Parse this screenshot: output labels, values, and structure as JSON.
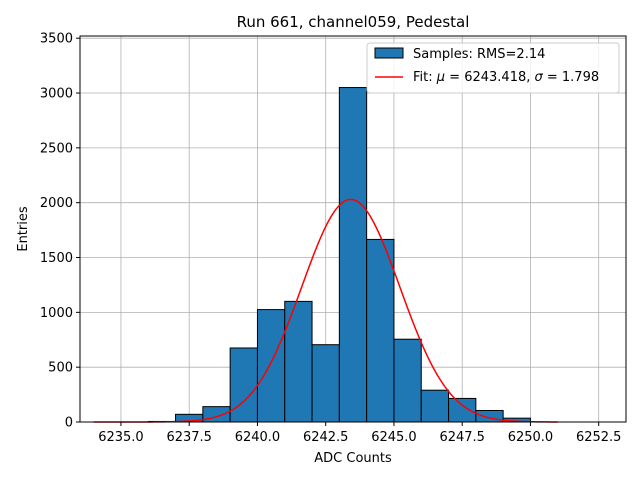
{
  "chart_data": {
    "type": "histogram",
    "title": "Run 661, channel059, Pedestal",
    "xlabel": "ADC Counts",
    "ylabel": "Entries",
    "xlim": [
      6233.5,
      6253.5
    ],
    "ylim": [
      0,
      3520
    ],
    "grid": true,
    "legend_placement": "top-right",
    "bar_color": "#1f77b4",
    "fit_color": "#ff0000",
    "xticks": [
      6235.0,
      6237.5,
      6240.0,
      6242.5,
      6245.0,
      6247.5,
      6250.0,
      6252.5
    ],
    "xtick_labels": [
      "6235.0",
      "6237.5",
      "6240.0",
      "6242.5",
      "6245.0",
      "6247.5",
      "6250.0",
      "6252.5"
    ],
    "yticks": [
      0,
      500,
      1000,
      1500,
      2000,
      2500,
      3000,
      3500
    ],
    "ytick_labels": [
      "0",
      "500",
      "1000",
      "1500",
      "2000",
      "2500",
      "3000",
      "3500"
    ],
    "bins": [
      {
        "x0": 6236,
        "x1": 6237,
        "count": 5
      },
      {
        "x0": 6237,
        "x1": 6238,
        "count": 70
      },
      {
        "x0": 6238,
        "x1": 6239,
        "count": 140
      },
      {
        "x0": 6239,
        "x1": 6240,
        "count": 675
      },
      {
        "x0": 6240,
        "x1": 6241,
        "count": 1025
      },
      {
        "x0": 6241,
        "x1": 6242,
        "count": 1100
      },
      {
        "x0": 6242,
        "x1": 6243,
        "count": 705
      },
      {
        "x0": 6243,
        "x1": 6244,
        "count": 3050
      },
      {
        "x0": 6244,
        "x1": 6245,
        "count": 1665
      },
      {
        "x0": 6245,
        "x1": 6246,
        "count": 755
      },
      {
        "x0": 6246,
        "x1": 6247,
        "count": 290
      },
      {
        "x0": 6247,
        "x1": 6248,
        "count": 215
      },
      {
        "x0": 6248,
        "x1": 6249,
        "count": 105
      },
      {
        "x0": 6249,
        "x1": 6250,
        "count": 35
      }
    ],
    "fit": {
      "mu": 6243.418,
      "sigma": 1.798,
      "amplitude": 2030,
      "x_range": [
        6234.0,
        6251.0
      ]
    },
    "legend": {
      "samples_label": "Samples: RMS=2.14",
      "fit_label_prefix": "Fit: ",
      "fit_mu_symbol": "μ",
      "fit_mu_text": " = 6243.418, ",
      "fit_sigma_symbol": "σ",
      "fit_sigma_text": " = 1.798"
    }
  }
}
